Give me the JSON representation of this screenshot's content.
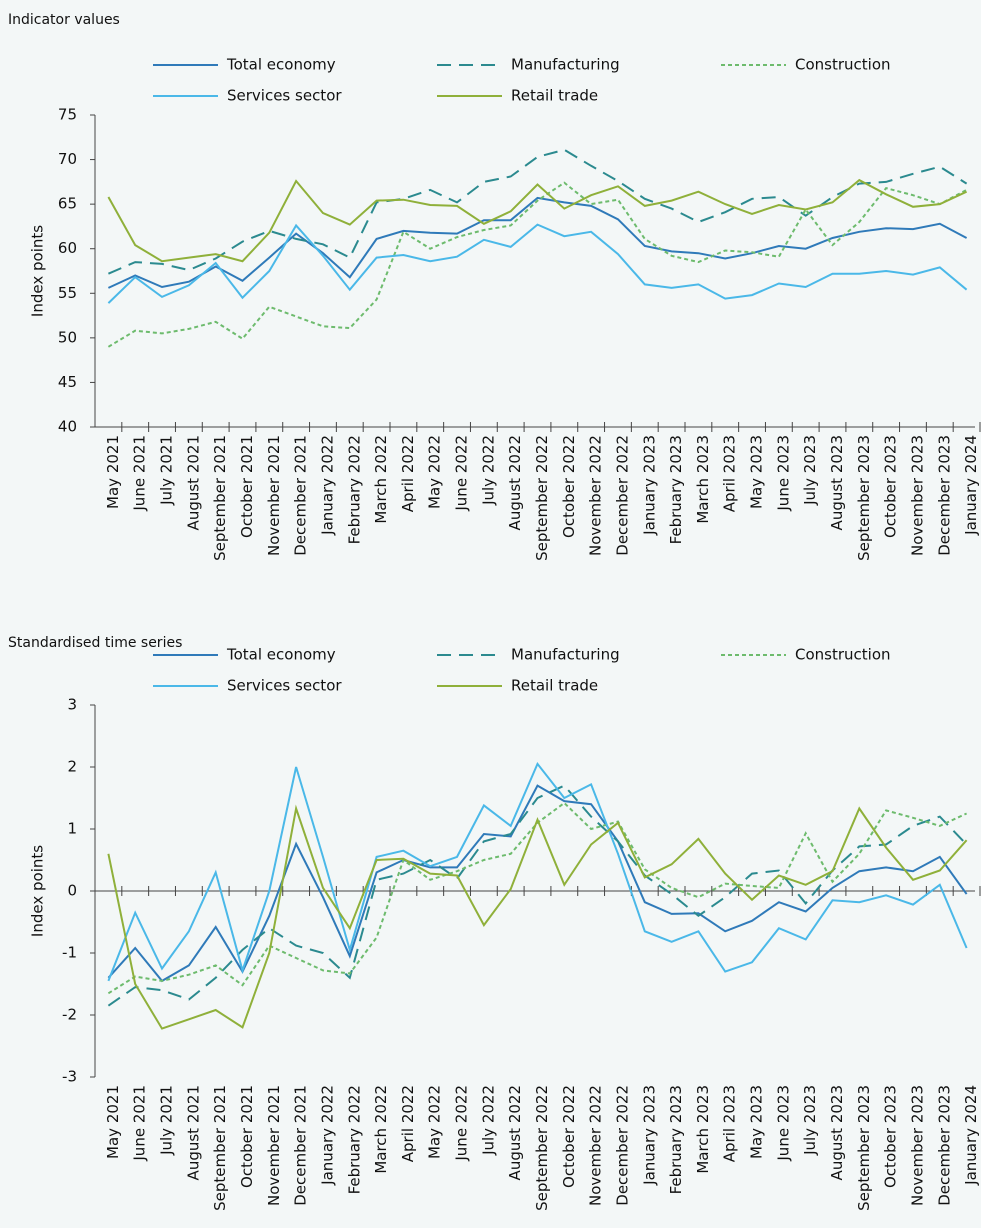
{
  "chart_data": [
    {
      "type": "line",
      "title": "Indicator values",
      "y_label": "Index points",
      "categories": [
        "May 2021",
        "June 2021",
        "July 2021",
        "August 2021",
        "September 2021",
        "October 2021",
        "November 2021",
        "December 2021",
        "January 2022",
        "February 2022",
        "March 2022",
        "April 2022",
        "May 2022",
        "June 2022",
        "July 2022",
        "August 2022",
        "September 2022",
        "October 2022",
        "November 2022",
        "December 2022",
        "January 2023",
        "February 2023",
        "March 2023",
        "April 2023",
        "May 2023",
        "June 2023",
        "July 2023",
        "August 2023",
        "September 2023",
        "October 2023",
        "November 2023",
        "December 2023",
        "January 2024"
      ],
      "series": [
        {
          "name": "Total economy",
          "color": "#2f7ab9",
          "style": "solid",
          "values": [
            55.6,
            57.0,
            55.7,
            56.3,
            58.0,
            56.4,
            59.0,
            61.7,
            59.5,
            56.8,
            61.1,
            62.0,
            61.8,
            61.7,
            63.2,
            63.2,
            65.7,
            65.2,
            64.8,
            63.3,
            60.3,
            59.7,
            59.5,
            58.9,
            59.5,
            60.3,
            60.0,
            61.2,
            61.9,
            62.3,
            62.2,
            62.8,
            61.2
          ]
        },
        {
          "name": "Manufacturing",
          "color": "#2b8a8f",
          "style": "dashed",
          "values": [
            57.2,
            58.5,
            58.3,
            57.6,
            58.9,
            60.8,
            62.0,
            61.1,
            60.5,
            59.0,
            65.2,
            65.6,
            66.6,
            65.2,
            67.5,
            68.1,
            70.3,
            71.1,
            69.3,
            67.6,
            65.6,
            64.5,
            63.0,
            64.1,
            65.6,
            65.8,
            63.7,
            65.8,
            67.3,
            67.5,
            68.4,
            69.2,
            67.3
          ]
        },
        {
          "name": "Construction",
          "color": "#6dbb6d",
          "style": "dotted",
          "values": [
            49.0,
            50.8,
            50.5,
            51.0,
            51.8,
            49.9,
            53.5,
            52.4,
            51.3,
            51.1,
            54.3,
            61.9,
            60.0,
            61.3,
            62.1,
            62.6,
            65.4,
            67.4,
            65.0,
            65.5,
            61.1,
            59.2,
            58.5,
            59.8,
            59.6,
            59.1,
            64.4,
            60.4,
            63.0,
            66.8,
            66.0,
            65.0,
            66.6
          ]
        },
        {
          "name": "Services sector",
          "color": "#4ab8e8",
          "style": "solid",
          "values": [
            53.9,
            56.8,
            54.6,
            55.9,
            58.4,
            54.5,
            57.5,
            62.6,
            59.2,
            55.4,
            59.0,
            59.3,
            58.6,
            59.1,
            61.0,
            60.2,
            62.7,
            61.4,
            61.9,
            59.4,
            56.0,
            55.6,
            56.0,
            54.4,
            54.8,
            56.1,
            55.7,
            57.2,
            57.2,
            57.5,
            57.1,
            57.9,
            55.4
          ]
        },
        {
          "name": "Retail trade",
          "color": "#8fb03a",
          "style": "solid",
          "values": [
            65.8,
            60.4,
            58.6,
            59.0,
            59.4,
            58.6,
            61.8,
            67.6,
            64.0,
            62.7,
            65.4,
            65.5,
            64.9,
            64.8,
            62.8,
            64.2,
            67.2,
            64.5,
            66.0,
            67.0,
            64.8,
            65.4,
            66.4,
            65.0,
            63.9,
            64.9,
            64.4,
            65.2,
            67.7,
            66.1,
            64.7,
            65.0,
            66.4
          ]
        }
      ],
      "ylim": [
        40,
        75
      ],
      "yticks": [
        40,
        45,
        50,
        55,
        60,
        65,
        70,
        75
      ],
      "legend": "top"
    },
    {
      "type": "line",
      "title": "Standardised time series",
      "y_label": "Index points",
      "categories": [
        "May 2021",
        "June 2021",
        "July 2021",
        "August 2021",
        "September 2021",
        "October 2021",
        "November 2021",
        "December 2021",
        "January 2022",
        "February 2022",
        "March 2022",
        "April 2022",
        "May 2022",
        "June 2022",
        "July 2022",
        "August 2022",
        "September 2022",
        "October 2022",
        "November 2022",
        "December 2022",
        "January 2023",
        "February 2023",
        "March 2023",
        "April 2023",
        "May 2023",
        "June 2023",
        "July 2023",
        "August 2023",
        "September 2023",
        "October 2023",
        "November 2023",
        "December 2023",
        "January 2024"
      ],
      "series": [
        {
          "name": "Total economy",
          "color": "#2f7ab9",
          "style": "solid",
          "values": [
            -1.4,
            -0.92,
            -1.45,
            -1.2,
            -0.58,
            -1.3,
            -0.4,
            0.76,
            -0.1,
            -1.05,
            0.3,
            0.5,
            0.38,
            0.38,
            0.92,
            0.88,
            1.7,
            1.45,
            1.4,
            0.8,
            -0.18,
            -0.37,
            -0.36,
            -0.65,
            -0.48,
            -0.18,
            -0.33,
            0.05,
            0.32,
            0.38,
            0.32,
            0.55,
            -0.05
          ]
        },
        {
          "name": "Manufacturing",
          "color": "#2b8a8f",
          "style": "dashed",
          "values": [
            -1.85,
            -1.55,
            -1.6,
            -1.75,
            -1.4,
            -0.95,
            -0.6,
            -0.88,
            -1.0,
            -1.4,
            0.18,
            0.28,
            0.5,
            0.2,
            0.8,
            0.92,
            1.5,
            1.7,
            1.2,
            0.8,
            0.25,
            -0.05,
            -0.4,
            -0.1,
            0.28,
            0.33,
            -0.2,
            0.33,
            0.72,
            0.75,
            1.05,
            1.2,
            0.75
          ]
        },
        {
          "name": "Construction",
          "color": "#6dbb6d",
          "style": "dotted",
          "values": [
            -1.65,
            -1.38,
            -1.45,
            -1.35,
            -1.2,
            -1.52,
            -0.88,
            -1.08,
            -1.28,
            -1.33,
            -0.75,
            0.5,
            0.18,
            0.32,
            0.5,
            0.6,
            1.1,
            1.42,
            1.0,
            1.12,
            0.35,
            0.05,
            -0.1,
            0.12,
            0.08,
            0.05,
            0.93,
            0.15,
            0.6,
            1.3,
            1.18,
            1.05,
            1.25
          ]
        },
        {
          "name": "Services sector",
          "color": "#4ab8e8",
          "style": "solid",
          "values": [
            -1.45,
            -0.35,
            -1.25,
            -0.65,
            0.3,
            -1.28,
            0.0,
            2.0,
            0.55,
            -0.95,
            0.55,
            0.65,
            0.4,
            0.55,
            1.38,
            1.05,
            2.05,
            1.5,
            1.72,
            0.6,
            -0.65,
            -0.82,
            -0.65,
            -1.3,
            -1.15,
            -0.6,
            -0.78,
            -0.15,
            -0.18,
            -0.07,
            -0.22,
            0.1,
            -0.92
          ]
        },
        {
          "name": "Retail trade",
          "color": "#8fb03a",
          "style": "solid",
          "values": [
            0.6,
            -1.5,
            -2.22,
            -2.07,
            -1.92,
            -2.2,
            -1.0,
            1.33,
            0.05,
            -0.6,
            0.5,
            0.52,
            0.28,
            0.25,
            -0.55,
            0.03,
            1.15,
            0.1,
            0.75,
            1.1,
            0.22,
            0.43,
            0.84,
            0.28,
            -0.14,
            0.25,
            0.1,
            0.32,
            1.33,
            0.7,
            0.18,
            0.33,
            0.82
          ]
        }
      ],
      "ylim": [
        -3,
        3
      ],
      "yticks": [
        -3,
        -2,
        -1,
        0,
        1,
        2,
        3
      ],
      "legend": "top"
    }
  ]
}
